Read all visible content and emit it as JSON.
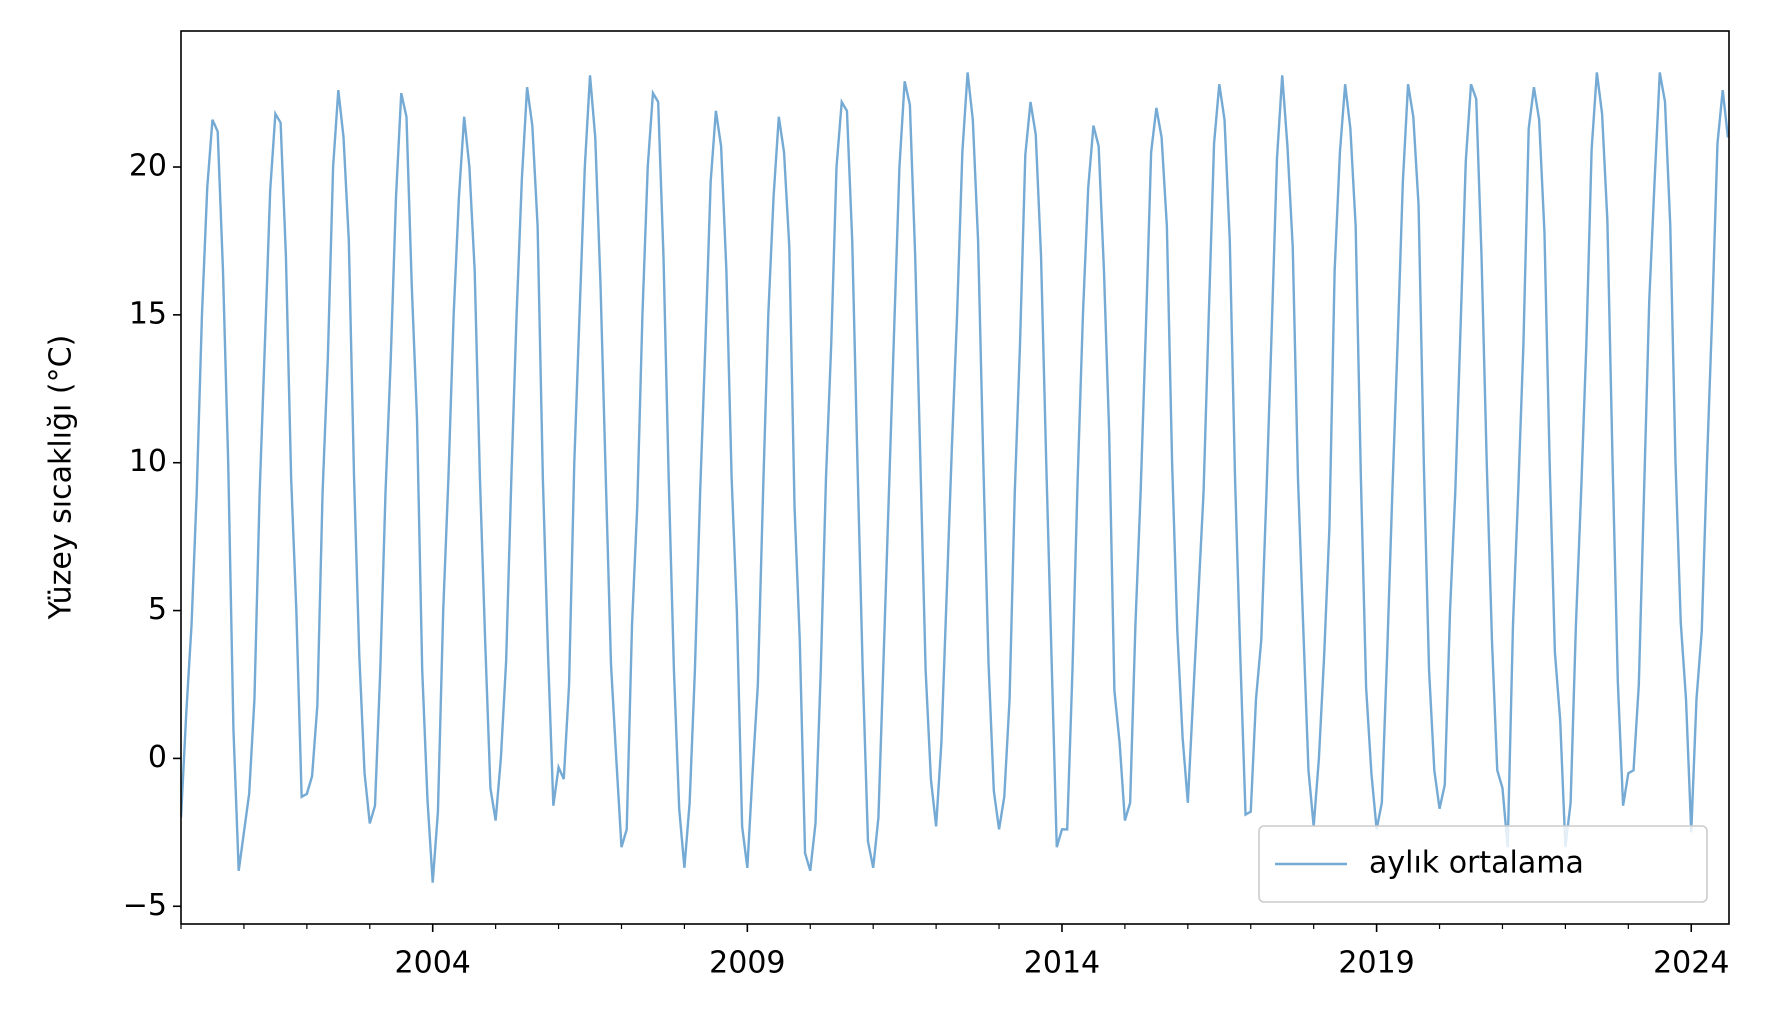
{
  "chart_data": {
    "type": "line",
    "y_label": "Yüzey sıcaklığı (°C)",
    "x": [
      2000,
      2000.083,
      2000.167,
      2000.25,
      2000.333,
      2000.417,
      2000.5,
      2000.583,
      2000.667,
      2000.75,
      2000.833,
      2000.917,
      2001,
      2001.083,
      2001.167,
      2001.25,
      2001.333,
      2001.417,
      2001.5,
      2001.583,
      2001.667,
      2001.75,
      2001.833,
      2001.917,
      2002,
      2002.083,
      2002.167,
      2002.25,
      2002.333,
      2002.417,
      2002.5,
      2002.583,
      2002.667,
      2002.75,
      2002.833,
      2002.917,
      2003,
      2003.083,
      2003.167,
      2003.25,
      2003.333,
      2003.417,
      2003.5,
      2003.583,
      2003.667,
      2003.75,
      2003.833,
      2003.917,
      2004,
      2004.083,
      2004.167,
      2004.25,
      2004.333,
      2004.417,
      2004.5,
      2004.583,
      2004.667,
      2004.75,
      2004.833,
      2004.917,
      2005,
      2005.083,
      2005.167,
      2005.25,
      2005.333,
      2005.417,
      2005.5,
      2005.583,
      2005.667,
      2005.75,
      2005.833,
      2005.917,
      2006,
      2006.083,
      2006.167,
      2006.25,
      2006.333,
      2006.417,
      2006.5,
      2006.583,
      2006.667,
      2006.75,
      2006.833,
      2006.917,
      2007,
      2007.083,
      2007.167,
      2007.25,
      2007.333,
      2007.417,
      2007.5,
      2007.583,
      2007.667,
      2007.75,
      2007.833,
      2007.917,
      2008,
      2008.083,
      2008.167,
      2008.25,
      2008.333,
      2008.417,
      2008.5,
      2008.583,
      2008.667,
      2008.75,
      2008.833,
      2008.917,
      2009,
      2009.083,
      2009.167,
      2009.25,
      2009.333,
      2009.417,
      2009.5,
      2009.583,
      2009.667,
      2009.75,
      2009.833,
      2009.917,
      2010,
      2010.083,
      2010.167,
      2010.25,
      2010.333,
      2010.417,
      2010.5,
      2010.583,
      2010.667,
      2010.75,
      2010.833,
      2010.917,
      2011,
      2011.083,
      2011.167,
      2011.25,
      2011.333,
      2011.417,
      2011.5,
      2011.583,
      2011.667,
      2011.75,
      2011.833,
      2011.917,
      2012,
      2012.083,
      2012.167,
      2012.25,
      2012.333,
      2012.417,
      2012.5,
      2012.583,
      2012.667,
      2012.75,
      2012.833,
      2012.917,
      2013,
      2013.083,
      2013.167,
      2013.25,
      2013.333,
      2013.417,
      2013.5,
      2013.583,
      2013.667,
      2013.75,
      2013.833,
      2013.917,
      2014,
      2014.083,
      2014.167,
      2014.25,
      2014.333,
      2014.417,
      2014.5,
      2014.583,
      2014.667,
      2014.75,
      2014.833,
      2014.917,
      2015,
      2015.083,
      2015.167,
      2015.25,
      2015.333,
      2015.417,
      2015.5,
      2015.583,
      2015.667,
      2015.75,
      2015.833,
      2015.917,
      2016,
      2016.083,
      2016.167,
      2016.25,
      2016.333,
      2016.417,
      2016.5,
      2016.583,
      2016.667,
      2016.75,
      2016.833,
      2016.917,
      2017,
      2017.083,
      2017.167,
      2017.25,
      2017.333,
      2017.417,
      2017.5,
      2017.583,
      2017.667,
      2017.75,
      2017.833,
      2017.917,
      2018,
      2018.083,
      2018.167,
      2018.25,
      2018.333,
      2018.417,
      2018.5,
      2018.583,
      2018.667,
      2018.75,
      2018.833,
      2018.917,
      2019,
      2019.083,
      2019.167,
      2019.25,
      2019.333,
      2019.417,
      2019.5,
      2019.583,
      2019.667,
      2019.75,
      2019.833,
      2019.917,
      2020,
      2020.083,
      2020.167,
      2020.25,
      2020.333,
      2020.417,
      2020.5,
      2020.583,
      2020.667,
      2020.75,
      2020.833,
      2020.917,
      2021,
      2021.083,
      2021.167,
      2021.25,
      2021.333,
      2021.417,
      2021.5,
      2021.583,
      2021.667,
      2021.75,
      2021.833,
      2021.917,
      2022,
      2022.083,
      2022.167,
      2022.25,
      2022.333,
      2022.417,
      2022.5,
      2022.583,
      2022.667,
      2022.75,
      2022.833,
      2022.917,
      2023,
      2023.083,
      2023.167,
      2023.25,
      2023.333,
      2023.417,
      2023.5,
      2023.583,
      2023.667,
      2023.75,
      2023.833,
      2023.917,
      2024,
      2024.083,
      2024.167,
      2024.25,
      2024.333,
      2024.417,
      2024.5,
      2024.583
    ],
    "series": [
      {
        "name": "aylık ortalama",
        "color": "#75aad4",
        "values": [
          -2,
          1.5,
          4.5,
          9,
          15,
          19.3,
          21.6,
          21.2,
          16.5,
          10,
          1,
          -3.8,
          -2.5,
          -1.2,
          2,
          9,
          14,
          19.2,
          21.8,
          21.5,
          17,
          9.5,
          5,
          -1.3,
          -1.2,
          -0.6,
          1.8,
          9,
          13.5,
          20,
          22.6,
          21,
          17.5,
          9.5,
          3.5,
          -0.5,
          -2.2,
          -1.6,
          3,
          9,
          13.5,
          19,
          22.5,
          21.7,
          16,
          11.5,
          3,
          -1.4,
          -4.2,
          -1.8,
          5,
          9.5,
          15,
          19,
          21.7,
          20,
          16.5,
          9.5,
          4,
          -1,
          -2.1,
          0,
          3.3,
          9.5,
          15,
          19.6,
          22.7,
          21.4,
          18,
          9.5,
          3.5,
          -1.6,
          -0.3,
          -0.7,
          2.5,
          10,
          15,
          20,
          23.1,
          21,
          16,
          9.5,
          3.2,
          0,
          -3,
          -2.4,
          4.5,
          8.5,
          15,
          20,
          22.5,
          22.2,
          17,
          9.5,
          3,
          -1.7,
          -3.7,
          -1.5,
          3,
          9,
          14,
          19.5,
          21.9,
          20.7,
          16.5,
          9.5,
          5,
          -2.3,
          -3.7,
          -0.5,
          2.5,
          9,
          15,
          19,
          21.7,
          20.5,
          17.3,
          8.5,
          4,
          -3.2,
          -3.8,
          -2.2,
          3,
          9.5,
          14,
          20,
          22.2,
          21.9,
          17.5,
          10,
          3,
          -2.8,
          -3.7,
          -2,
          3.5,
          9,
          14.5,
          20,
          22.9,
          22.1,
          17,
          10,
          3,
          -0.7,
          -2.3,
          0.5,
          5.5,
          10.5,
          15,
          20.5,
          23.2,
          21.6,
          17.5,
          10,
          3.2,
          -1.1,
          -2.4,
          -1.3,
          2,
          9,
          14,
          20.4,
          22.2,
          21.1,
          17,
          10,
          3.5,
          -3,
          -2.4,
          -2.4,
          3,
          9.5,
          15,
          19.3,
          21.4,
          20.7,
          16.5,
          11,
          2.3,
          0.5,
          -2.1,
          -1.5,
          4.5,
          9,
          14.5,
          20.5,
          22,
          21,
          18,
          10,
          4.3,
          0.7,
          -1.5,
          2,
          5.5,
          9,
          15,
          20.8,
          22.8,
          21.6,
          17.5,
          9.5,
          3.5,
          -1.9,
          -1.8,
          2,
          4,
          9,
          14.5,
          20.3,
          23.1,
          20.7,
          17.3,
          9.5,
          4.5,
          -0.4,
          -2.3,
          0,
          3.5,
          7.8,
          16.5,
          20.5,
          22.8,
          21.3,
          18,
          9.5,
          2.4,
          -0.5,
          -2.4,
          -1.5,
          3.5,
          9,
          14,
          19.5,
          22.8,
          21.7,
          18.7,
          10,
          3,
          -0.4,
          -1.7,
          -0.9,
          5,
          9,
          14.5,
          20.2,
          22.8,
          22.3,
          17,
          10,
          4,
          -0.4,
          -1,
          -3,
          4.5,
          9,
          14,
          21.3,
          22.7,
          21.6,
          17.8,
          10,
          3.6,
          1.3,
          -3,
          -1.5,
          4.5,
          9,
          14,
          20.6,
          23.2,
          21.8,
          18.2,
          10,
          2.6,
          -1.6,
          -0.5,
          -0.4,
          2.5,
          9,
          15.5,
          19.5,
          23.2,
          22.2,
          18,
          10,
          4.6,
          2,
          -2.5,
          2,
          4.3,
          10,
          15,
          20.8,
          22.6,
          21
        ]
      }
    ],
    "xlim": [
      2000,
      2024.6
    ],
    "ylim": [
      -5.6,
      24.6
    ],
    "xticks": [
      2004,
      2009,
      2014,
      2019,
      2024
    ],
    "xminorticks": [
      2000,
      2001,
      2002,
      2003,
      2005,
      2006,
      2007,
      2008,
      2010,
      2011,
      2012,
      2013,
      2015,
      2016,
      2017,
      2018,
      2020,
      2021,
      2022,
      2023
    ],
    "yticks": [
      {
        "value": -5,
        "label": "−5"
      },
      0,
      5,
      10,
      15,
      20
    ],
    "grid": false,
    "legend": "lower right"
  }
}
